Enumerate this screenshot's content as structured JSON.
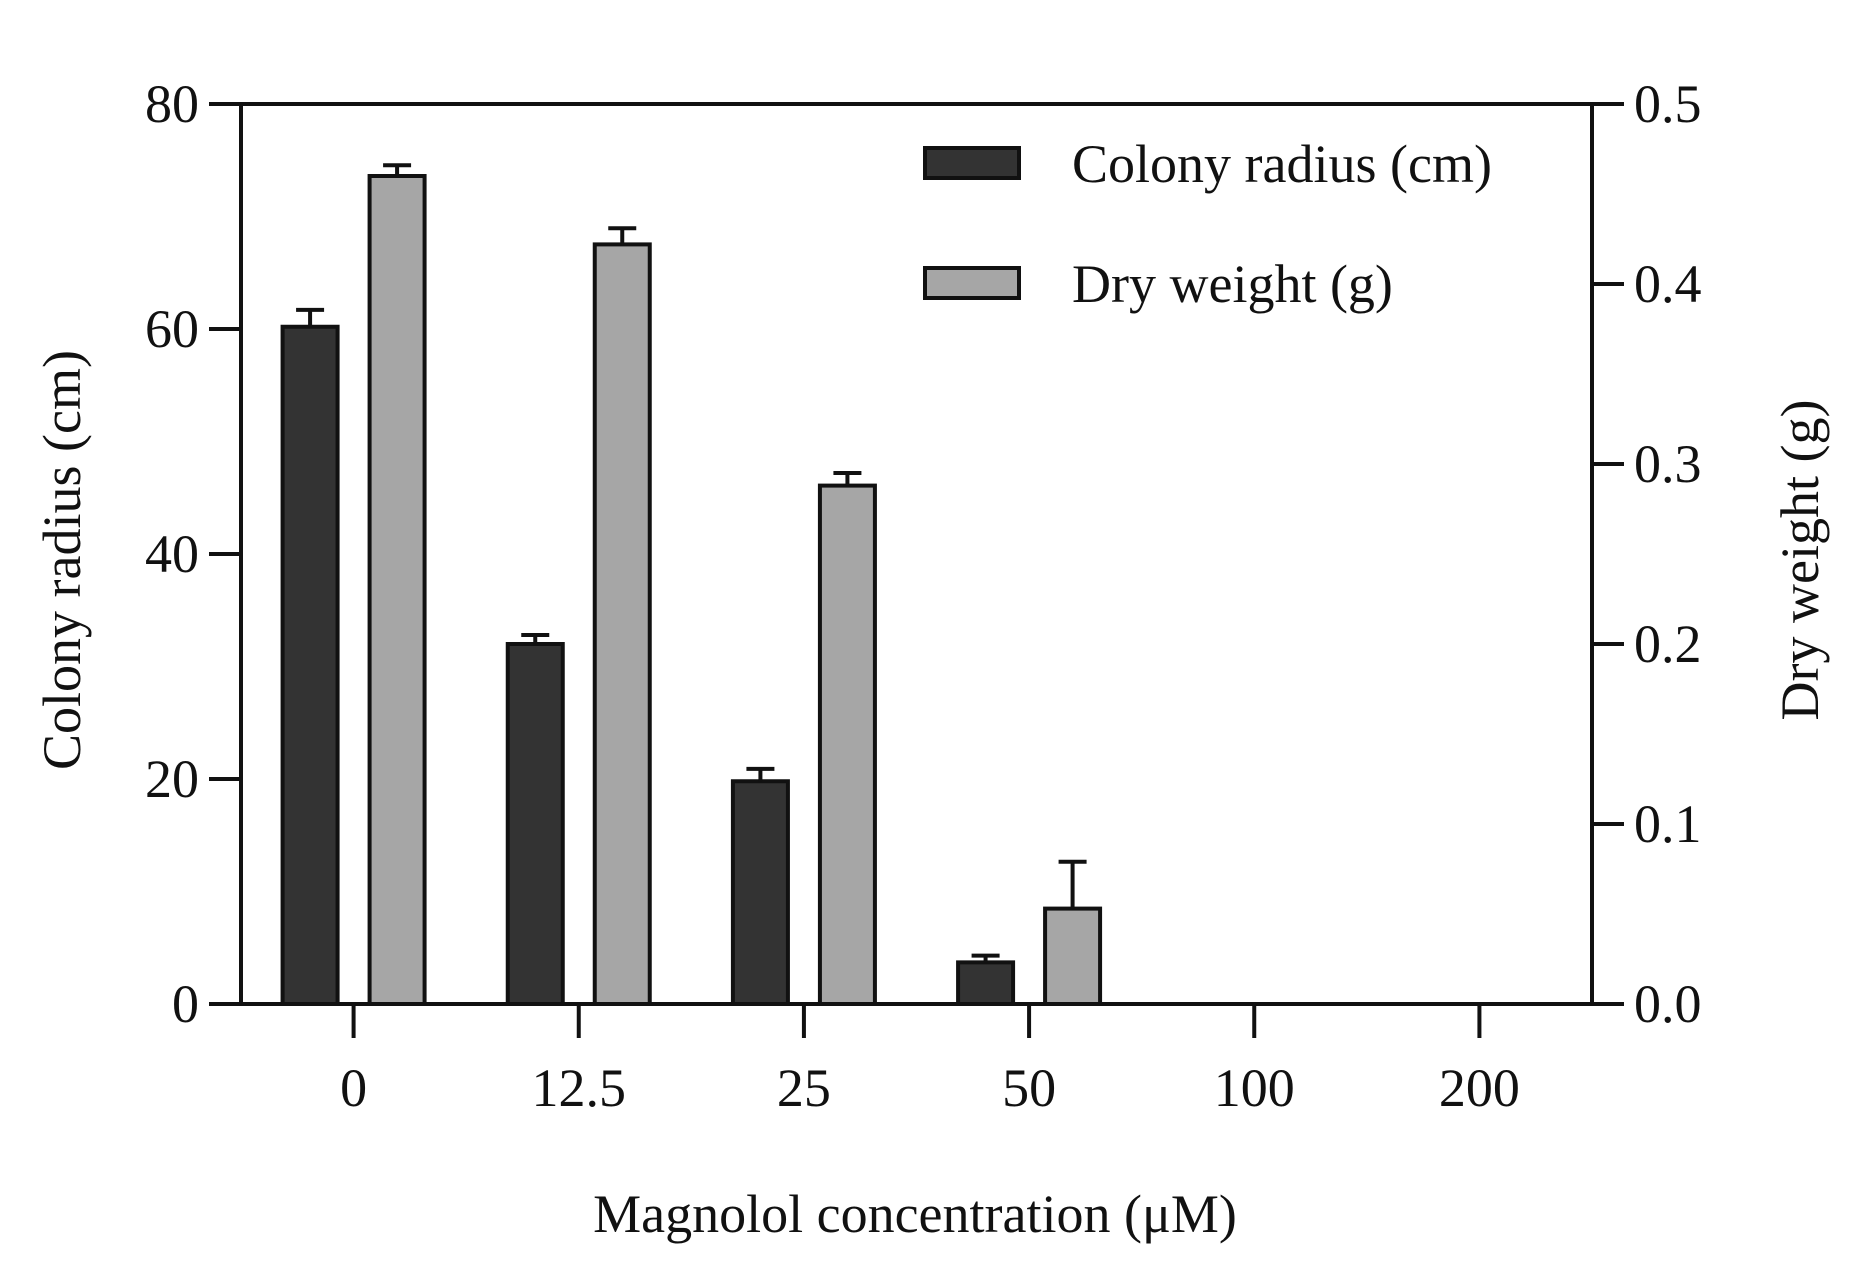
{
  "colors": {
    "colony_radius": "#333333",
    "dry_weight": "#a6a6a6",
    "axis": "#111111",
    "background": "#ffffff"
  },
  "chart_data": {
    "type": "bar",
    "title": "",
    "xlabel": "Magnolol concentration  (μM)",
    "ylabel_left": "Colony radius (cm)",
    "ylabel_right": "Dry weight (g)",
    "categories": [
      "0",
      "12.5",
      "25",
      "50",
      "100",
      "200"
    ],
    "y_left": {
      "lim": [
        0,
        80
      ],
      "ticks": [
        0,
        20,
        40,
        60,
        80
      ],
      "tick_labels": [
        "0",
        "20",
        "40",
        "60",
        "80"
      ]
    },
    "y_right": {
      "lim": [
        0,
        0.5
      ],
      "ticks": [
        0.0,
        0.1,
        0.2,
        0.3,
        0.4,
        0.5
      ],
      "tick_labels": [
        "0.0",
        "0.1",
        "0.2",
        "0.3",
        "0.4",
        "0.5"
      ]
    },
    "legend_position": "top-right",
    "series": [
      {
        "name": "Colony radius (cm)",
        "axis": "left",
        "values": [
          60.2,
          32.0,
          19.8,
          3.7,
          0,
          0
        ],
        "errors": [
          1.5,
          0.8,
          1.1,
          0.6,
          0,
          0
        ]
      },
      {
        "name": "Dry weight (g)",
        "axis": "right",
        "values": [
          0.46,
          0.422,
          0.288,
          0.053,
          0,
          0
        ],
        "errors": [
          0.006,
          0.009,
          0.007,
          0.026,
          0,
          0
        ]
      }
    ]
  }
}
